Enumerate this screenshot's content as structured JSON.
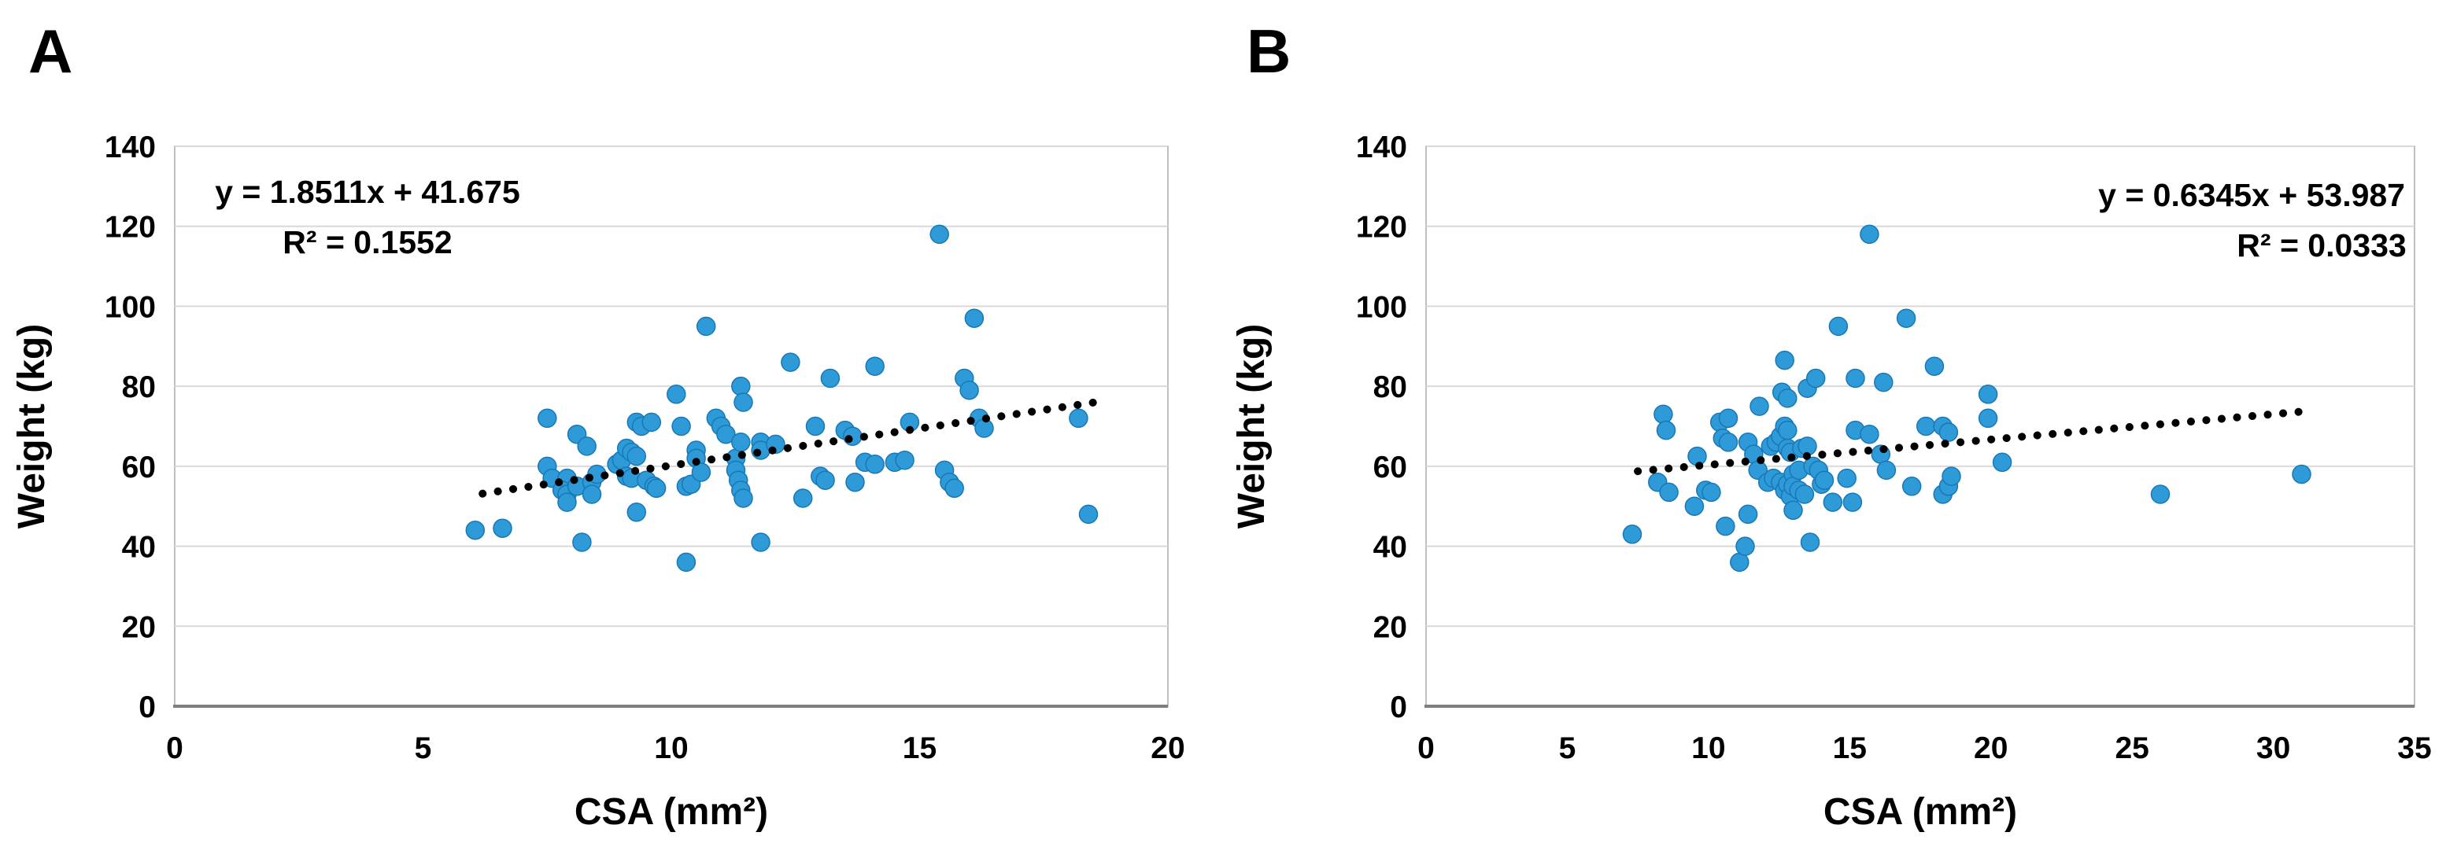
{
  "chart_data": [
    {
      "type": "scatter",
      "panel_label": "A",
      "title": "",
      "xlabel": "CSA (mm²)",
      "ylabel": "Weight (kg)",
      "xlim": [
        0,
        20
      ],
      "ylim": [
        0,
        140
      ],
      "x_axis": {
        "ticks": [
          0,
          5,
          10,
          15,
          20
        ]
      },
      "y_axis": {
        "ticks": [
          0,
          20,
          40,
          60,
          80,
          100,
          120,
          140
        ]
      },
      "grid": "horizontal-only",
      "legend": "none",
      "equation": {
        "line1": "y = 1.8511x + 41.675",
        "line2": "R² = 0.1552"
      },
      "trendline": {
        "slope": 1.8511,
        "intercept": 41.675,
        "r2": 0.1552,
        "x_start": 6.2,
        "x_end": 18.6,
        "style": "dotted"
      },
      "colors": {
        "point_fill": "#2e9bd8",
        "point_stroke": "#1878b6",
        "trendline": "#000000",
        "gridline": "#d9d9d9",
        "border": "#bfbfbf",
        "axis_line": "#7f7f7f",
        "text": "#000000"
      },
      "points": [
        [
          6.05,
          44
        ],
        [
          6.6,
          44.5
        ],
        [
          7.5,
          72
        ],
        [
          7.5,
          60
        ],
        [
          7.6,
          57
        ],
        [
          7.9,
          57
        ],
        [
          7.8,
          54
        ],
        [
          7.9,
          53
        ],
        [
          7.9,
          51
        ],
        [
          8.1,
          68
        ],
        [
          8.1,
          55
        ],
        [
          8.2,
          41
        ],
        [
          8.3,
          65
        ],
        [
          8.4,
          56
        ],
        [
          8.4,
          53
        ],
        [
          8.5,
          58
        ],
        [
          8.9,
          60.5
        ],
        [
          9,
          61.5
        ],
        [
          9.1,
          64.5
        ],
        [
          9.2,
          63.5
        ],
        [
          9.3,
          62.5
        ],
        [
          9.1,
          57.5
        ],
        [
          9.2,
          57
        ],
        [
          9.3,
          71
        ],
        [
          9.4,
          70
        ],
        [
          9.6,
          71
        ],
        [
          9.3,
          48.5
        ],
        [
          9.5,
          56.5
        ],
        [
          9.65,
          55
        ],
        [
          9.7,
          54.5
        ],
        [
          10.1,
          78
        ],
        [
          10.2,
          70
        ],
        [
          10.3,
          55
        ],
        [
          10.4,
          55.5
        ],
        [
          10.3,
          36
        ],
        [
          10.5,
          64
        ],
        [
          10.5,
          62
        ],
        [
          10.6,
          58.5
        ],
        [
          10.7,
          95
        ],
        [
          10.9,
          72
        ],
        [
          11,
          70
        ],
        [
          11.1,
          68
        ],
        [
          11.3,
          62
        ],
        [
          11.3,
          59
        ],
        [
          11.35,
          56.5
        ],
        [
          11.4,
          54
        ],
        [
          11.45,
          52
        ],
        [
          11.4,
          66
        ],
        [
          11.4,
          80
        ],
        [
          11.45,
          76
        ],
        [
          11.8,
          66
        ],
        [
          11.8,
          64
        ],
        [
          11.8,
          41
        ],
        [
          12.1,
          65.5
        ],
        [
          12.4,
          86
        ],
        [
          12.65,
          52
        ],
        [
          12.9,
          70
        ],
        [
          13,
          57.5
        ],
        [
          13.1,
          56.5
        ],
        [
          13.2,
          82
        ],
        [
          13.5,
          69
        ],
        [
          13.65,
          67.5
        ],
        [
          13.7,
          56
        ],
        [
          13.9,
          61
        ],
        [
          14.1,
          85
        ],
        [
          14.1,
          60.5
        ],
        [
          14.5,
          61
        ],
        [
          14.7,
          61.5
        ],
        [
          14.8,
          71
        ],
        [
          15.4,
          118
        ],
        [
          15.5,
          59
        ],
        [
          15.6,
          56
        ],
        [
          15.7,
          54.5
        ],
        [
          15.9,
          82
        ],
        [
          16,
          79
        ],
        [
          16.1,
          97
        ],
        [
          16.2,
          72
        ],
        [
          16.3,
          69.5
        ],
        [
          18.2,
          72
        ],
        [
          18.4,
          48
        ]
      ]
    },
    {
      "type": "scatter",
      "panel_label": "B",
      "title": "",
      "xlabel": "CSA (mm²)",
      "ylabel": "Weight (kg)",
      "xlim": [
        0,
        35
      ],
      "ylim": [
        0,
        140
      ],
      "x_axis": {
        "ticks": [
          0,
          5,
          10,
          15,
          20,
          25,
          30,
          35
        ]
      },
      "y_axis": {
        "ticks": [
          0,
          20,
          40,
          60,
          80,
          100,
          120,
          140
        ]
      },
      "grid": "horizontal-only",
      "legend": "none",
      "equation": {
        "line1": "y = 0.6345x + 53.987",
        "line2": "R² = 0.0333"
      },
      "trendline": {
        "slope": 0.6345,
        "intercept": 53.987,
        "r2": 0.0333,
        "x_start": 7.5,
        "x_end": 30.9,
        "style": "dotted"
      },
      "colors": {
        "point_fill": "#2e9bd8",
        "point_stroke": "#1878b6",
        "trendline": "#000000",
        "gridline": "#d9d9d9",
        "border": "#bfbfbf",
        "axis_line": "#7f7f7f",
        "text": "#000000"
      },
      "points": [
        [
          7.3,
          43
        ],
        [
          8.2,
          56
        ],
        [
          8.4,
          73
        ],
        [
          8.5,
          69
        ],
        [
          8.6,
          53.5
        ],
        [
          9.5,
          50
        ],
        [
          9.6,
          62.5
        ],
        [
          9.9,
          54
        ],
        [
          10.1,
          53.5
        ],
        [
          10.4,
          71
        ],
        [
          10.7,
          72
        ],
        [
          10.5,
          67
        ],
        [
          10.7,
          66
        ],
        [
          10.6,
          45
        ],
        [
          11.1,
          36
        ],
        [
          11.3,
          40
        ],
        [
          11.4,
          48
        ],
        [
          11.4,
          66
        ],
        [
          11.6,
          63
        ],
        [
          11.75,
          59
        ],
        [
          11.8,
          75
        ],
        [
          12.1,
          56
        ],
        [
          12.2,
          65
        ],
        [
          12.3,
          57
        ],
        [
          12.4,
          66
        ],
        [
          12.55,
          67.5
        ],
        [
          12.55,
          56
        ],
        [
          12.7,
          70
        ],
        [
          12.7,
          54
        ],
        [
          12.8,
          69
        ],
        [
          12.8,
          64.5
        ],
        [
          12.8,
          55.5
        ],
        [
          12.9,
          63.5
        ],
        [
          12.9,
          52.5
        ],
        [
          13,
          58
        ],
        [
          13,
          55
        ],
        [
          13,
          49
        ],
        [
          13.2,
          59
        ],
        [
          13.2,
          54
        ],
        [
          13.3,
          64.5
        ],
        [
          13.4,
          53
        ],
        [
          13.5,
          65
        ],
        [
          13.6,
          41
        ],
        [
          13.5,
          79.5
        ],
        [
          13.8,
          82
        ],
        [
          13.7,
          60
        ],
        [
          13.9,
          59
        ],
        [
          14,
          55.5
        ],
        [
          14.1,
          56.5
        ],
        [
          14.4,
          51
        ],
        [
          14.9,
          57
        ],
        [
          15.1,
          51
        ],
        [
          12.7,
          86.5
        ],
        [
          12.6,
          78.5
        ],
        [
          12.8,
          77
        ],
        [
          14.6,
          95
        ],
        [
          15.2,
          82
        ],
        [
          15.7,
          118
        ],
        [
          16.2,
          81
        ],
        [
          15.2,
          69
        ],
        [
          15.7,
          68
        ],
        [
          16.1,
          63
        ],
        [
          16.3,
          59
        ],
        [
          17,
          97
        ],
        [
          17.2,
          55
        ],
        [
          18,
          85
        ],
        [
          17.7,
          70
        ],
        [
          18.3,
          70
        ],
        [
          18.5,
          68.5
        ],
        [
          18.3,
          53
        ],
        [
          18.5,
          55
        ],
        [
          18.6,
          57.5
        ],
        [
          19.9,
          78
        ],
        [
          19.9,
          72
        ],
        [
          20.4,
          61
        ],
        [
          26,
          53
        ],
        [
          31,
          58
        ]
      ]
    }
  ]
}
